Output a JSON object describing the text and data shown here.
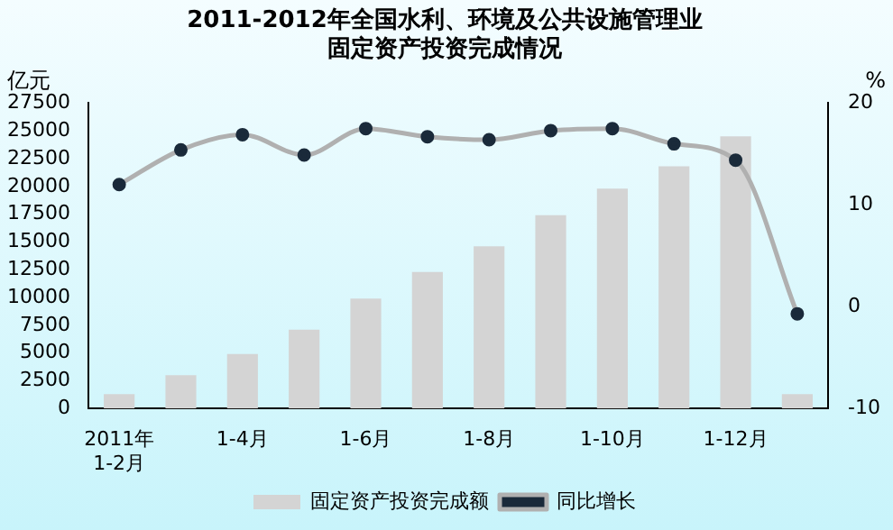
{
  "chart_data": {
    "type": "bar",
    "title": "2011-2012年全国水利、环境及公共设施管理业",
    "subtitle": "固定资产投资完成情况",
    "ylabel": "亿元",
    "y2label": "%",
    "categories": [
      "2011年\n1-2月",
      null,
      "1-4月",
      null,
      "1-6月",
      null,
      "1-8月",
      null,
      "1-10月",
      null,
      "1-12月",
      null
    ],
    "series": [
      {
        "name": "固定资产投资完成额",
        "color": "#d4d4d4",
        "values": [
          1300,
          3000,
          4900,
          7100,
          9900,
          12300,
          14600,
          17400,
          19800,
          21800,
          24500,
          1300
        ]
      },
      {
        "name": "同比增长",
        "type": "line",
        "axis": "y2",
        "color": "#b0b0b0",
        "values": [
          12.0,
          15.4,
          16.9,
          14.9,
          17.5,
          16.7,
          16.4,
          17.3,
          17.5,
          16.0,
          14.4,
          -0.7
        ]
      }
    ],
    "ylim": [
      0,
      27500
    ],
    "yticks": [
      0,
      2500,
      5000,
      7500,
      10000,
      12500,
      15000,
      17500,
      20000,
      22500,
      25000,
      27500
    ],
    "y2lim": [
      -10,
      20
    ],
    "y2ticks": [
      -10,
      0,
      10,
      20
    ],
    "marker": "circle",
    "legend": "bottom",
    "grid": false
  }
}
